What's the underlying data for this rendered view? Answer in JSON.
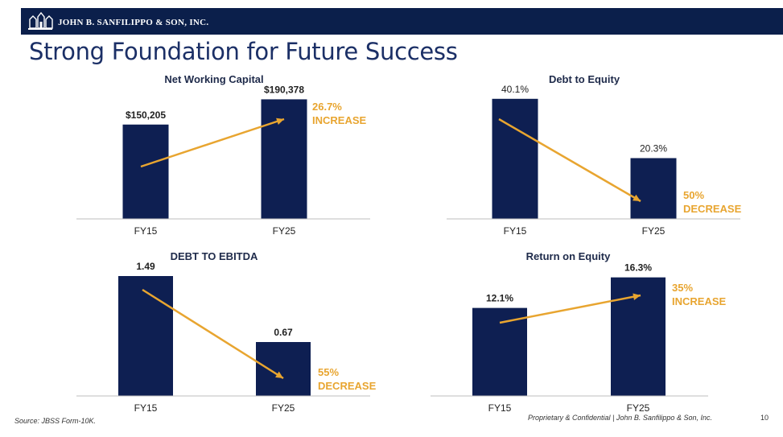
{
  "header": {
    "company_name": "JOHN B. SANFILIPPO & SON, INC.",
    "title": "Strong Foundation for Future Success"
  },
  "colors": {
    "brand_navy": "#0b1f4b",
    "bar": "#0e1f52",
    "accent": "#e8a530",
    "title_text": "#1b2f66"
  },
  "chart_data": [
    {
      "type": "bar",
      "title": "Net Working Capital",
      "categories": [
        "FY15",
        "FY25"
      ],
      "values": [
        150205,
        190378
      ],
      "data_labels": [
        "$150,205",
        "$190,378"
      ],
      "label_bold": true,
      "ylim": [
        0,
        205000
      ],
      "annotation": [
        "26.7%",
        "INCREASE"
      ],
      "trend": "up"
    },
    {
      "type": "bar",
      "title": "Debt to Equity",
      "categories": [
        "FY15",
        "FY25"
      ],
      "values": [
        40.1,
        20.3
      ],
      "data_labels": [
        "40.1%",
        "20.3%"
      ],
      "label_bold": false,
      "ylim": [
        0,
        43
      ],
      "annotation": [
        "50%",
        "DECREASE"
      ],
      "trend": "down"
    },
    {
      "type": "bar",
      "title": "DEBT TO EBITDA",
      "categories": [
        "FY15",
        "FY25"
      ],
      "values": [
        1.49,
        0.67
      ],
      "data_labels": [
        "1.49",
        "0.67"
      ],
      "label_bold": true,
      "ylim": [
        0,
        1.6
      ],
      "annotation": [
        "55%",
        "DECREASE"
      ],
      "trend": "down"
    },
    {
      "type": "bar",
      "title": "Return on Equity",
      "categories": [
        "FY15",
        "FY25"
      ],
      "values": [
        12.1,
        16.3
      ],
      "data_labels": [
        "12.1%",
        "16.3%"
      ],
      "label_bold": true,
      "ylim": [
        0,
        17.7
      ],
      "annotation": [
        "35%",
        "INCREASE"
      ],
      "trend": "up"
    }
  ],
  "footer": {
    "source": "Source: JBSS Form-10K.",
    "confidential": "Proprietary & Confidential | John B. Sanfilippo & Son, Inc.",
    "page_number": "10"
  }
}
